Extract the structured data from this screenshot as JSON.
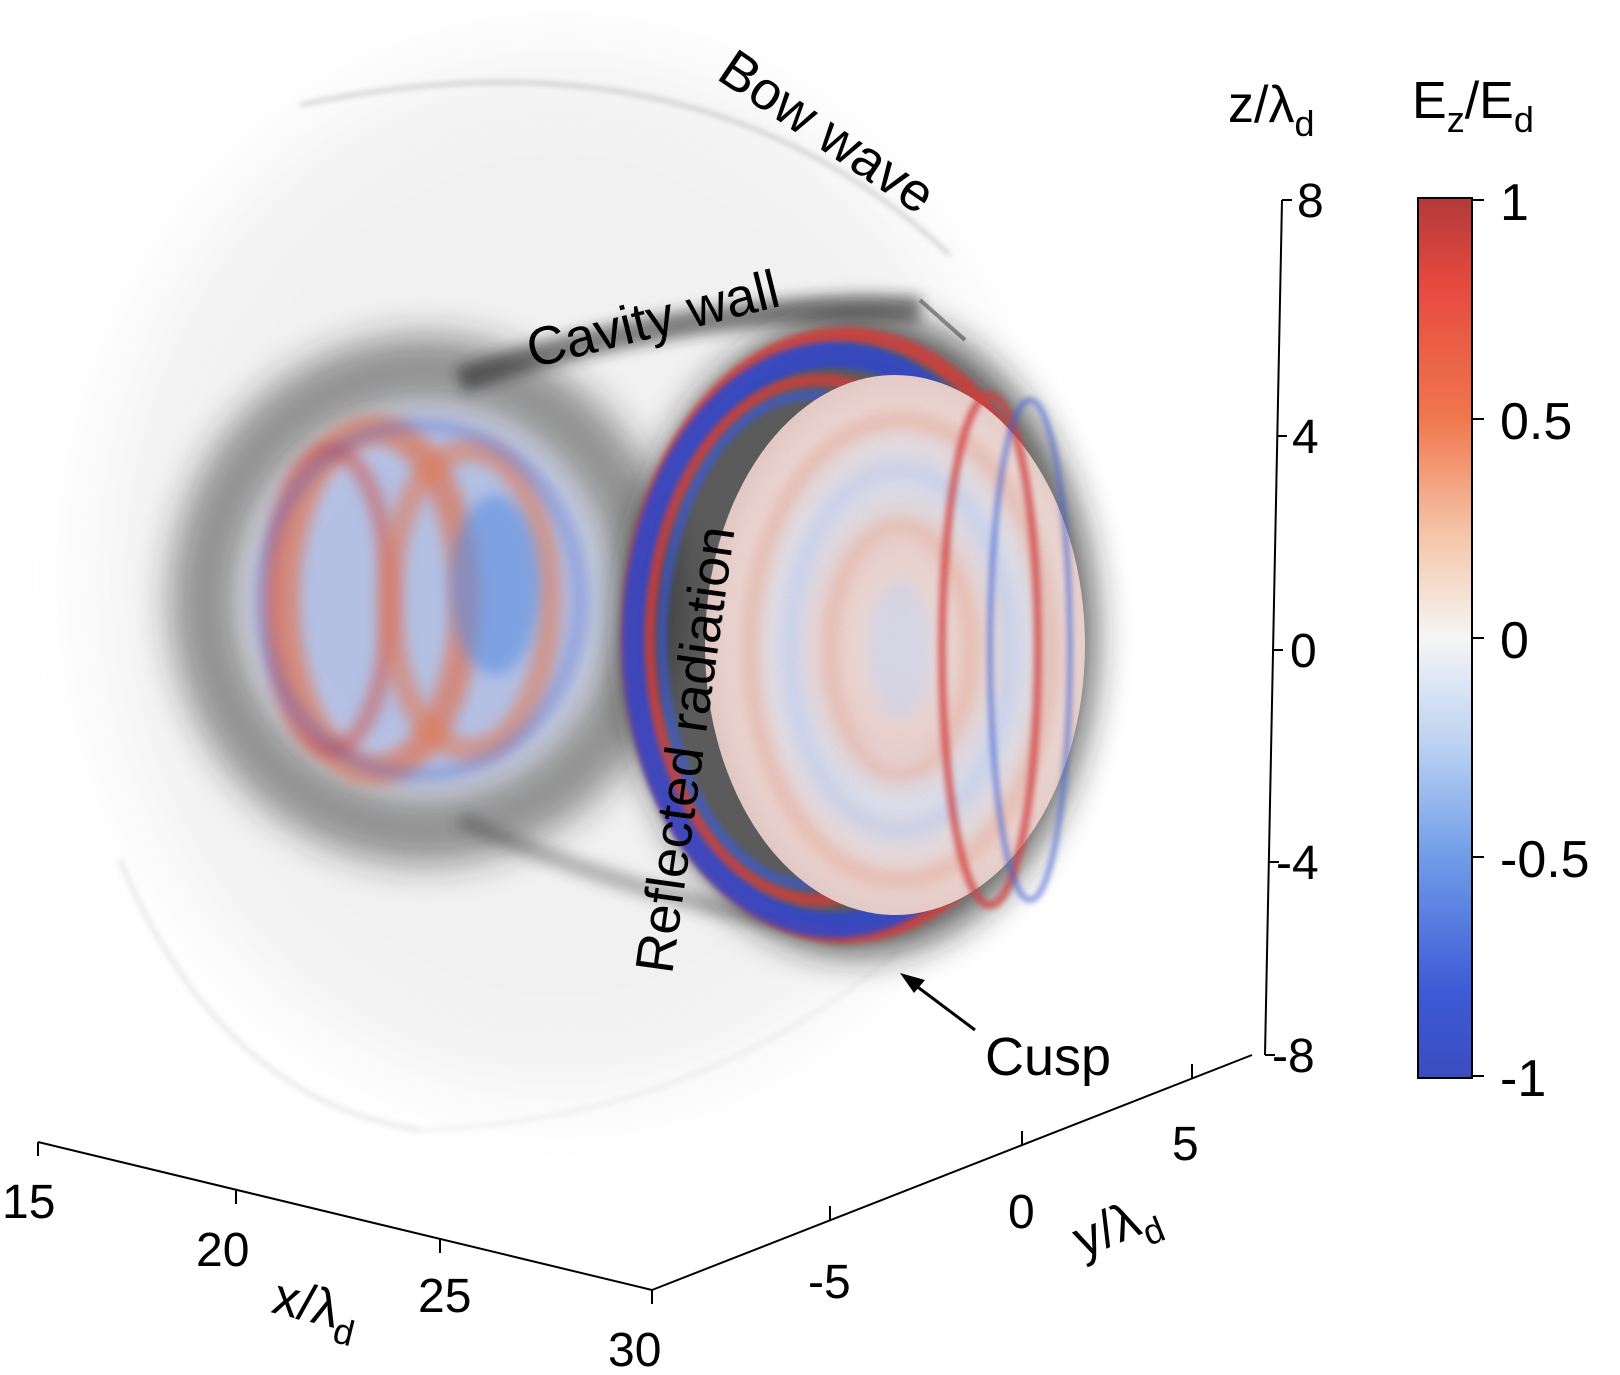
{
  "annotations": {
    "bow_wave": "Bow wave",
    "cavity_wall": "Cavity wall",
    "reflected_radiation": "Reflected radiation",
    "cusp": "Cusp"
  },
  "axes": {
    "z_label": "z/λd",
    "z_label_main": "z/λ",
    "z_label_sub": "d",
    "z_ticks": [
      "8",
      "4",
      "0",
      "-4",
      "-8"
    ],
    "x_label": "x/λd",
    "x_label_main": "x/λ",
    "x_label_sub": "d",
    "x_ticks": [
      "15",
      "20",
      "25",
      "30"
    ],
    "y_label": "y/λd",
    "y_label_main": "y/λ",
    "y_label_sub": "d",
    "y_ticks": [
      "-5",
      "0",
      "5"
    ]
  },
  "colorbar": {
    "title": "Ez/Ed",
    "title_main_1": "E",
    "title_sub_1": "z",
    "title_main_2": "/E",
    "title_sub_2": "d",
    "ticks": [
      "1",
      "0.5",
      "0",
      "-0.5",
      "-1"
    ],
    "range": [
      -1,
      1
    ],
    "colors": {
      "max": "#b23a3a",
      "mid": "#f5f5f5",
      "min": "#3a4cc0"
    }
  }
}
